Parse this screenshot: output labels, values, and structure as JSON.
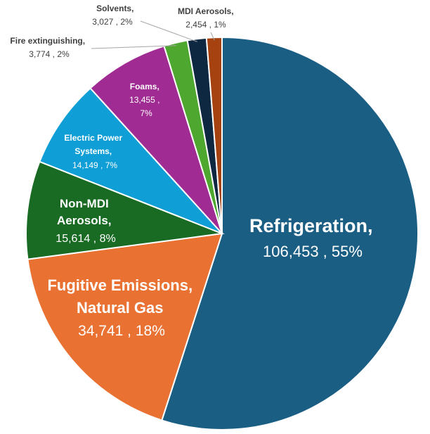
{
  "chart_data": {
    "type": "pie",
    "title": "",
    "slices": [
      {
        "name": "Refrigeration,",
        "value_label": "106,453",
        "percent_label": "55%",
        "value": 106453,
        "color": "#1b5e84",
        "text_color": "#ffffff"
      },
      {
        "name": "Fugitive Emissions, Natural Gas",
        "name_lines": [
          "Fugitive Emissions,",
          "Natural Gas"
        ],
        "value_label": "34,741",
        "percent_label": "18%",
        "value": 34741,
        "color": "#e97132",
        "text_color": "#ffffff"
      },
      {
        "name": "Non-MDI Aerosols,",
        "name_lines": [
          "Non-MDI",
          "Aerosols,"
        ],
        "value_label": "15,614",
        "percent_label": "8%",
        "value": 15614,
        "color": "#196b24",
        "text_color": "#ffffff"
      },
      {
        "name": "Electric Power Systems,",
        "name_lines": [
          "Electric Power",
          "Systems,"
        ],
        "value_label": "14,149",
        "percent_label": "7%",
        "value": 14149,
        "color": "#0f9ed5",
        "text_color": "#ffffff"
      },
      {
        "name": "Foams,",
        "name_lines": [
          "Foams,"
        ],
        "value_label": "13,455",
        "percent_label": "7%",
        "value": 13455,
        "color": "#a02b93",
        "text_color": "#ffffff"
      },
      {
        "name": "Fire extinguishing,",
        "value_label": "3,774",
        "percent_label": "2%",
        "value": 3774,
        "color": "#4ea72e",
        "text_color": "#404040"
      },
      {
        "name": "Solvents,",
        "value_label": "3,027",
        "percent_label": "2%",
        "value": 3027,
        "color": "#0e2841",
        "text_color": "#404040"
      },
      {
        "name": "MDI Aerosols,",
        "value_label": "2,454",
        "percent_label": "1%",
        "value": 2454,
        "color": "#a5420f",
        "text_color": "#404040"
      }
    ]
  }
}
